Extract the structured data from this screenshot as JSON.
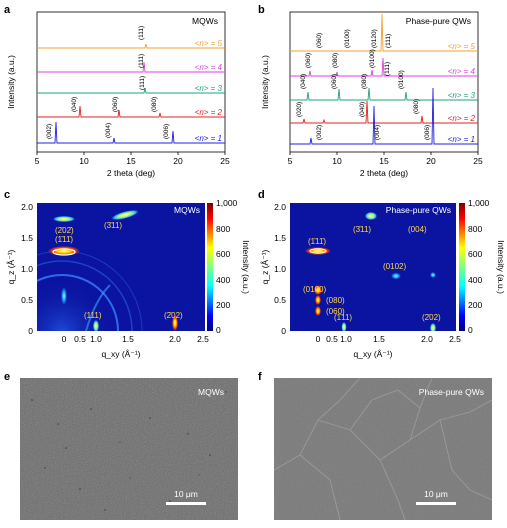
{
  "panels": {
    "a": {
      "letter": "a",
      "label": "MQWs",
      "xlabel": "2 theta (deg)",
      "ylabel": "Intensity (a.u.)",
      "xticks": [
        "5",
        "10",
        "15",
        "20",
        "25"
      ],
      "traces": [
        "<n> = 5",
        "<n> = 4",
        "<n> = 3",
        "<n> = 2",
        "<n> = 1"
      ],
      "peaks": [
        "(002)",
        "(040)",
        "(004)",
        "(060)",
        "(080)",
        "(006)",
        "(111)",
        "(111)",
        "(111)"
      ]
    },
    "b": {
      "letter": "b",
      "label": "Phase-pure QWs",
      "xlabel": "2 theta (deg)",
      "ylabel": "Intensity (a.u.)",
      "xticks": [
        "5",
        "10",
        "15",
        "20",
        "25"
      ],
      "traces": [
        "<n> = 5",
        "<n> = 4",
        "<n> = 3",
        "<n> = 2",
        "<n> = 1"
      ],
      "peaks": [
        "(060)",
        "(0100)",
        "(0120)",
        "(111)",
        "(060)",
        "(080)",
        "(0100)",
        "(111)",
        "(040)",
        "(060)",
        "(080)",
        "(0100)",
        "(020)",
        "(040)",
        "(080)",
        "(002)",
        "(004)",
        "(006)"
      ]
    },
    "c": {
      "letter": "c",
      "label": "MQWs",
      "xlabel": "q_xy (Å⁻¹)",
      "ylabel": "q_z (Å⁻¹)",
      "xticks": [
        "0",
        "0.5",
        "1.0",
        "1.5",
        "2.0",
        "2.5"
      ],
      "yticks": [
        "0",
        "0.5",
        "1.0",
        "1.5",
        "2.0"
      ],
      "cbar_label": "Intensity (a.u.)",
      "cbar_ticks": [
        "0",
        "200",
        "400",
        "600",
        "800",
        "1,000"
      ],
      "peaks": [
        "(2̄02̄)",
        "(3̄11)",
        "(1̄11̄)",
        "(111)",
        "(2̄02)"
      ]
    },
    "d": {
      "letter": "d",
      "label": "Phase-pure QWs",
      "xlabel": "q_xy (Å⁻¹)",
      "ylabel": "q_z (Å⁻¹)",
      "xticks": [
        "0",
        "0.5",
        "1.0",
        "1.5",
        "2.0",
        "2.5"
      ],
      "yticks": [
        "0",
        "0.5",
        "1.0",
        "1.5",
        "2.0"
      ],
      "cbar_label": "Intensity (a.u.)",
      "cbar_ticks": [
        "0",
        "200",
        "400",
        "600",
        "800",
        "1,000"
      ],
      "peaks": [
        "(3̄11)",
        "(004)",
        "(1̄11̄)",
        "(0102)",
        "(0100)",
        "(080)",
        "(060)",
        "(1̄11)",
        "(2̄02)"
      ]
    },
    "e": {
      "letter": "e",
      "label": "MQWs",
      "scale": "10 μm"
    },
    "f": {
      "letter": "f",
      "label": "Phase-pure QWs",
      "scale": "10 μm"
    }
  },
  "colors": {
    "n5": "#f0a030",
    "n4": "#e040e0",
    "n3": "#20a080",
    "n2": "#e02020",
    "n1": "#2020e0",
    "map_bg": "#0a14a0"
  }
}
